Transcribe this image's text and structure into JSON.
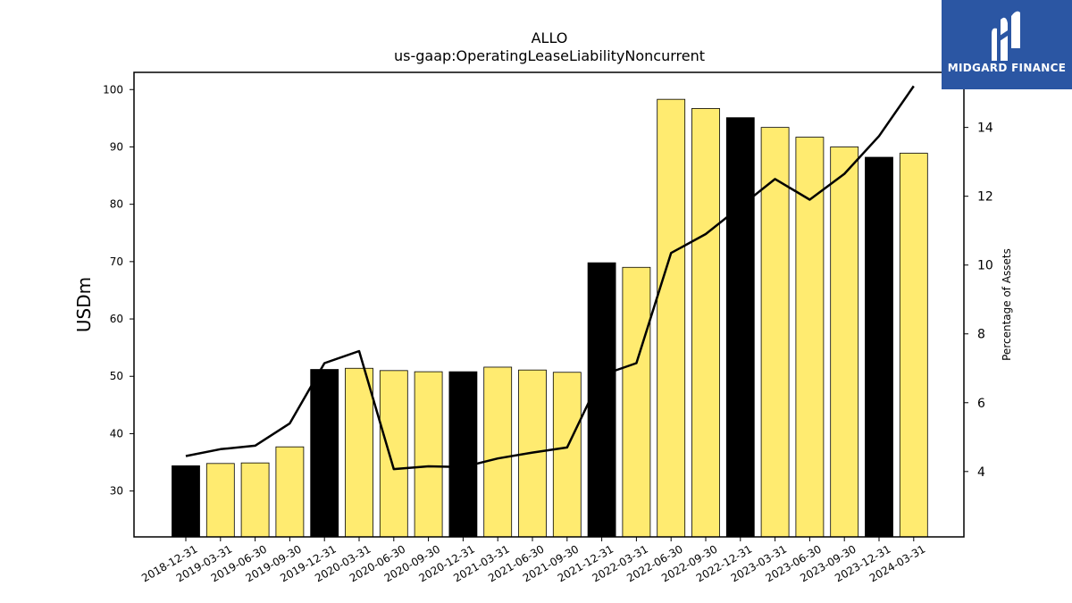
{
  "chart_data": {
    "type": "bar",
    "title": "ALLO",
    "subtitle": "us-gaap:OperatingLeaseLiabilityNoncurrent",
    "ylabel": "USDm",
    "y2label": "Percentage of Assets",
    "ylim": [
      22,
      103
    ],
    "y2lim": [
      2.1,
      15.6
    ],
    "yticks": [
      30,
      40,
      50,
      60,
      70,
      80,
      90,
      100
    ],
    "y2ticks": [
      4,
      6,
      8,
      10,
      12,
      14
    ],
    "grid": false,
    "categories": [
      "2018-12-31",
      "2019-03-31",
      "2019-06-30",
      "2019-09-30",
      "2019-12-31",
      "2020-03-31",
      "2020-06-30",
      "2020-09-30",
      "2020-12-31",
      "2021-03-31",
      "2021-06-30",
      "2021-09-30",
      "2021-12-31",
      "2022-03-31",
      "2022-06-30",
      "2022-09-30",
      "2022-12-31",
      "2023-03-31",
      "2023-06-30",
      "2023-09-30",
      "2023-12-31",
      "2024-03-31"
    ],
    "series": [
      {
        "type": "bar",
        "values": [
          34.4,
          34.8,
          34.9,
          37.7,
          51.2,
          51.4,
          51.0,
          50.8,
          50.8,
          51.6,
          51.1,
          50.7,
          69.8,
          69.0,
          98.3,
          96.7,
          95.1,
          93.4,
          91.7,
          90.0,
          88.2,
          88.9
        ],
        "colors": [
          "#000000",
          "#ffeb70",
          "#ffeb70",
          "#ffeb70",
          "#000000",
          "#ffeb70",
          "#ffeb70",
          "#ffeb70",
          "#000000",
          "#ffeb70",
          "#ffeb70",
          "#ffeb70",
          "#000000",
          "#ffeb70",
          "#ffeb70",
          "#ffeb70",
          "#000000",
          "#ffeb70",
          "#ffeb70",
          "#ffeb70",
          "#000000",
          "#ffeb70"
        ]
      },
      {
        "type": "line",
        "axis": "right",
        "color": "#000000",
        "values": [
          4.45,
          4.65,
          4.75,
          5.4,
          7.15,
          7.5,
          4.07,
          4.15,
          4.13,
          4.38,
          4.55,
          4.7,
          6.8,
          7.15,
          10.35,
          10.9,
          11.7,
          12.5,
          11.9,
          12.65,
          13.75,
          15.2
        ]
      }
    ]
  },
  "logo": {
    "brand": "MIDGARD FINANCE",
    "icon": "midgard-m-icon",
    "color": "#2b56a3"
  }
}
